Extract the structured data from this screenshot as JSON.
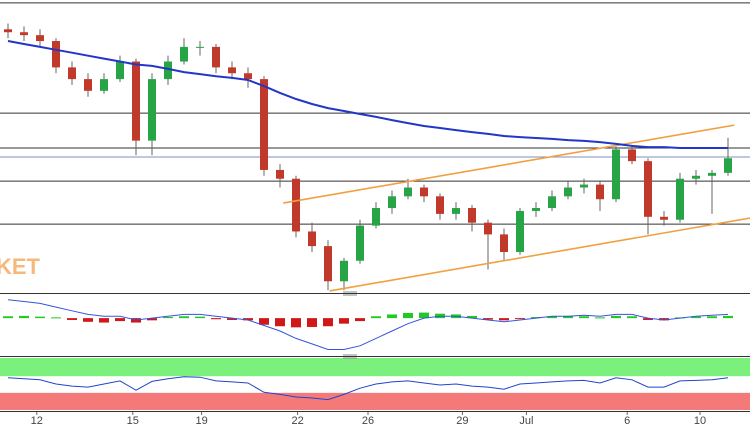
{
  "chart_data": {
    "type": "candlestick",
    "watermark": "KET",
    "ylim": [
      0,
      100
    ],
    "xlim": [
      -0.5,
      46.375
    ],
    "xticks": [
      {
        "value": 1.8,
        "label": "12"
      },
      {
        "value": 7.8,
        "label": "15"
      },
      {
        "value": 12.1,
        "label": "19"
      },
      {
        "value": 18.1,
        "label": "22"
      },
      {
        "value": 22.5,
        "label": "26"
      },
      {
        "value": 28.4,
        "label": "29"
      },
      {
        "value": 32.4,
        "label": "Jul"
      },
      {
        "value": 38.7,
        "label": "6"
      },
      {
        "value": 43.25,
        "label": "10"
      }
    ],
    "up_color": "#27a446",
    "down_color": "#c0392b",
    "levels": [
      99,
      61.4,
      49.5,
      38.2,
      23.5
    ],
    "level_color": "#333333",
    "reference_level": 46.4,
    "reference_color": "#7d8fb8",
    "candles": [
      [
        90,
        92,
        87,
        89
      ],
      [
        89,
        91,
        86,
        88
      ],
      [
        88,
        90,
        84,
        86
      ],
      [
        86,
        87,
        75,
        77
      ],
      [
        77,
        79,
        71,
        73
      ],
      [
        73,
        75,
        67,
        69
      ],
      [
        69,
        75,
        68,
        73
      ],
      [
        73,
        81,
        72,
        79
      ],
      [
        79,
        80,
        47,
        52
      ],
      [
        52,
        75,
        47,
        73
      ],
      [
        73,
        81,
        71,
        79
      ],
      [
        79,
        87,
        78,
        84
      ],
      [
        84,
        86,
        81,
        84
      ],
      [
        84,
        85,
        75,
        77
      ],
      [
        77,
        79,
        73,
        75
      ],
      [
        75,
        77,
        70,
        73
      ],
      [
        73,
        74,
        40,
        42
      ],
      [
        42,
        44,
        36,
        39
      ],
      [
        39,
        40,
        19,
        21
      ],
      [
        21,
        24,
        14,
        16
      ],
      [
        16,
        18,
        1,
        4
      ],
      [
        4,
        12,
        1,
        11
      ],
      [
        11,
        25,
        10,
        23
      ],
      [
        23,
        31,
        22,
        29
      ],
      [
        29,
        35,
        27,
        33
      ],
      [
        33,
        39,
        32,
        36
      ],
      [
        36,
        37,
        31,
        33
      ],
      [
        33,
        34,
        25,
        27
      ],
      [
        27,
        31,
        25,
        29
      ],
      [
        29,
        30,
        21,
        24
      ],
      [
        24,
        25,
        8,
        20
      ],
      [
        20,
        22,
        11,
        14
      ],
      [
        14,
        29,
        13,
        28
      ],
      [
        28,
        31,
        26,
        29
      ],
      [
        29,
        35,
        28,
        33
      ],
      [
        33,
        38,
        32,
        36
      ],
      [
        36,
        39,
        34,
        37
      ],
      [
        37,
        38,
        28,
        32
      ],
      [
        32,
        50,
        31,
        49
      ],
      [
        49,
        50,
        44,
        45
      ],
      [
        45,
        46,
        20,
        26
      ],
      [
        26,
        28,
        23,
        25
      ],
      [
        25,
        41,
        24,
        39
      ],
      [
        39,
        42,
        37,
        40
      ],
      [
        40,
        42,
        27,
        41
      ],
      [
        41,
        53,
        40,
        46
      ]
    ],
    "ma": {
      "color": "#2236c8",
      "values": [
        86,
        85,
        84,
        83,
        82,
        81,
        80,
        79,
        78,
        77.5,
        76.5,
        75.4,
        74.7,
        74,
        73.4,
        72.7,
        70.6,
        68.3,
        66.2,
        64.5,
        63.1,
        62.1,
        61.1,
        60.1,
        59,
        58,
        57,
        56.3,
        55.6,
        54.9,
        54.3,
        53.6,
        53.2,
        52.9,
        52.6,
        52.2,
        51.9,
        51.5,
        50.9,
        50.2,
        49.8,
        49.8,
        49.5,
        49.5,
        49.5,
        49.5
      ]
    },
    "trendlines": {
      "color": "#f0a040",
      "lines": [
        {
          "x": [
            17.2,
            45.4
          ],
          "y": [
            30.7,
            57.3
          ]
        },
        {
          "x": [
            20.1,
            46.4
          ],
          "y": [
            0.7,
            25.6
          ]
        }
      ]
    },
    "macd": {
      "ylim": [
        -1,
        0.6
      ],
      "pos_color": "#22c922",
      "neg_color": "#d01818",
      "histogram": [
        0.05,
        0.06,
        0.04,
        0.02,
        -0.05,
        -0.1,
        -0.12,
        -0.08,
        -0.12,
        -0.06,
        0.03,
        0.05,
        0.04,
        -0.03,
        -0.05,
        -0.06,
        -0.18,
        -0.22,
        -0.25,
        -0.24,
        -0.22,
        -0.15,
        -0.08,
        0.05,
        0.1,
        0.14,
        0.15,
        0.12,
        0.1,
        0.06,
        -0.04,
        -0.06,
        -0.02,
        0.03,
        0.05,
        0.06,
        0.05,
        0.02,
        0.06,
        0.05,
        -0.05,
        -0.06,
        0.02,
        0.04,
        0.05,
        0.06
      ],
      "line": {
        "color": "#3355dd",
        "values": [
          0.5,
          0.45,
          0.4,
          0.3,
          0.2,
          0.1,
          0.05,
          0.05,
          -0.05,
          0.0,
          0.05,
          0.1,
          0.1,
          0.05,
          0.0,
          -0.05,
          -0.2,
          -0.35,
          -0.55,
          -0.7,
          -0.85,
          -0.85,
          -0.75,
          -0.55,
          -0.35,
          -0.15,
          0.0,
          0.05,
          0.05,
          0.0,
          -0.05,
          -0.1,
          -0.05,
          0.0,
          0.05,
          0.05,
          0.08,
          0.05,
          0.1,
          0.1,
          0.0,
          -0.05,
          0.0,
          0.05,
          0.08,
          0.1
        ]
      }
    },
    "rsi": {
      "ylim": [
        0,
        100
      ],
      "bands": [
        {
          "range": [
            65,
            100
          ],
          "color": "#7cf07c"
        },
        {
          "range": [
            0,
            33
          ],
          "color": "#f47a7a"
        }
      ],
      "color": "#2244cc",
      "values": [
        62,
        60,
        58,
        50,
        46,
        44,
        50,
        56,
        38,
        55,
        60,
        64,
        63,
        56,
        54,
        52,
        34,
        30,
        25,
        23,
        20,
        30,
        42,
        50,
        54,
        56,
        52,
        48,
        50,
        46,
        44,
        40,
        50,
        52,
        54,
        56,
        57,
        52,
        62,
        58,
        44,
        44,
        56,
        57,
        58,
        62
      ]
    }
  }
}
